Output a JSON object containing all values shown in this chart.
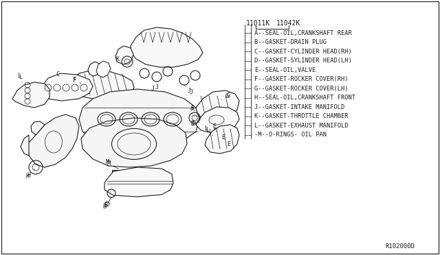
{
  "background_color": "#ffffff",
  "line_color": "#1a1a1a",
  "legend_items": [
    "A--SEAL-OIL,CRANKSHAFT REAR",
    "B--GASKET-DRAIN PLUG",
    "C--GASKET-CYLINDER HEAD(RH)",
    "D--GASKET-SYLINDER HEAD(LH)",
    "E--SEAL-OIL,VALVE",
    "F--GASKET-ROCKER COVER(RH)",
    "G--GASKET-ROCKER COVER(LH)",
    "H--SEAL-OIL,CRANKSHAFT FRONT",
    "J--GASKET-INTAKE MANIFOLD",
    "K--GASKET-THROTTLE CHAMBER",
    "L--GASKET-EXHAUST MANIFOLD",
    "-M--O-RINGS- OIL PAN"
  ],
  "pn1": "11011K",
  "pn2": "11042K",
  "ref": "R102000D",
  "legend_fontsize": 6.2,
  "label_fontsize": 6.0,
  "pn_fontsize": 7.0
}
